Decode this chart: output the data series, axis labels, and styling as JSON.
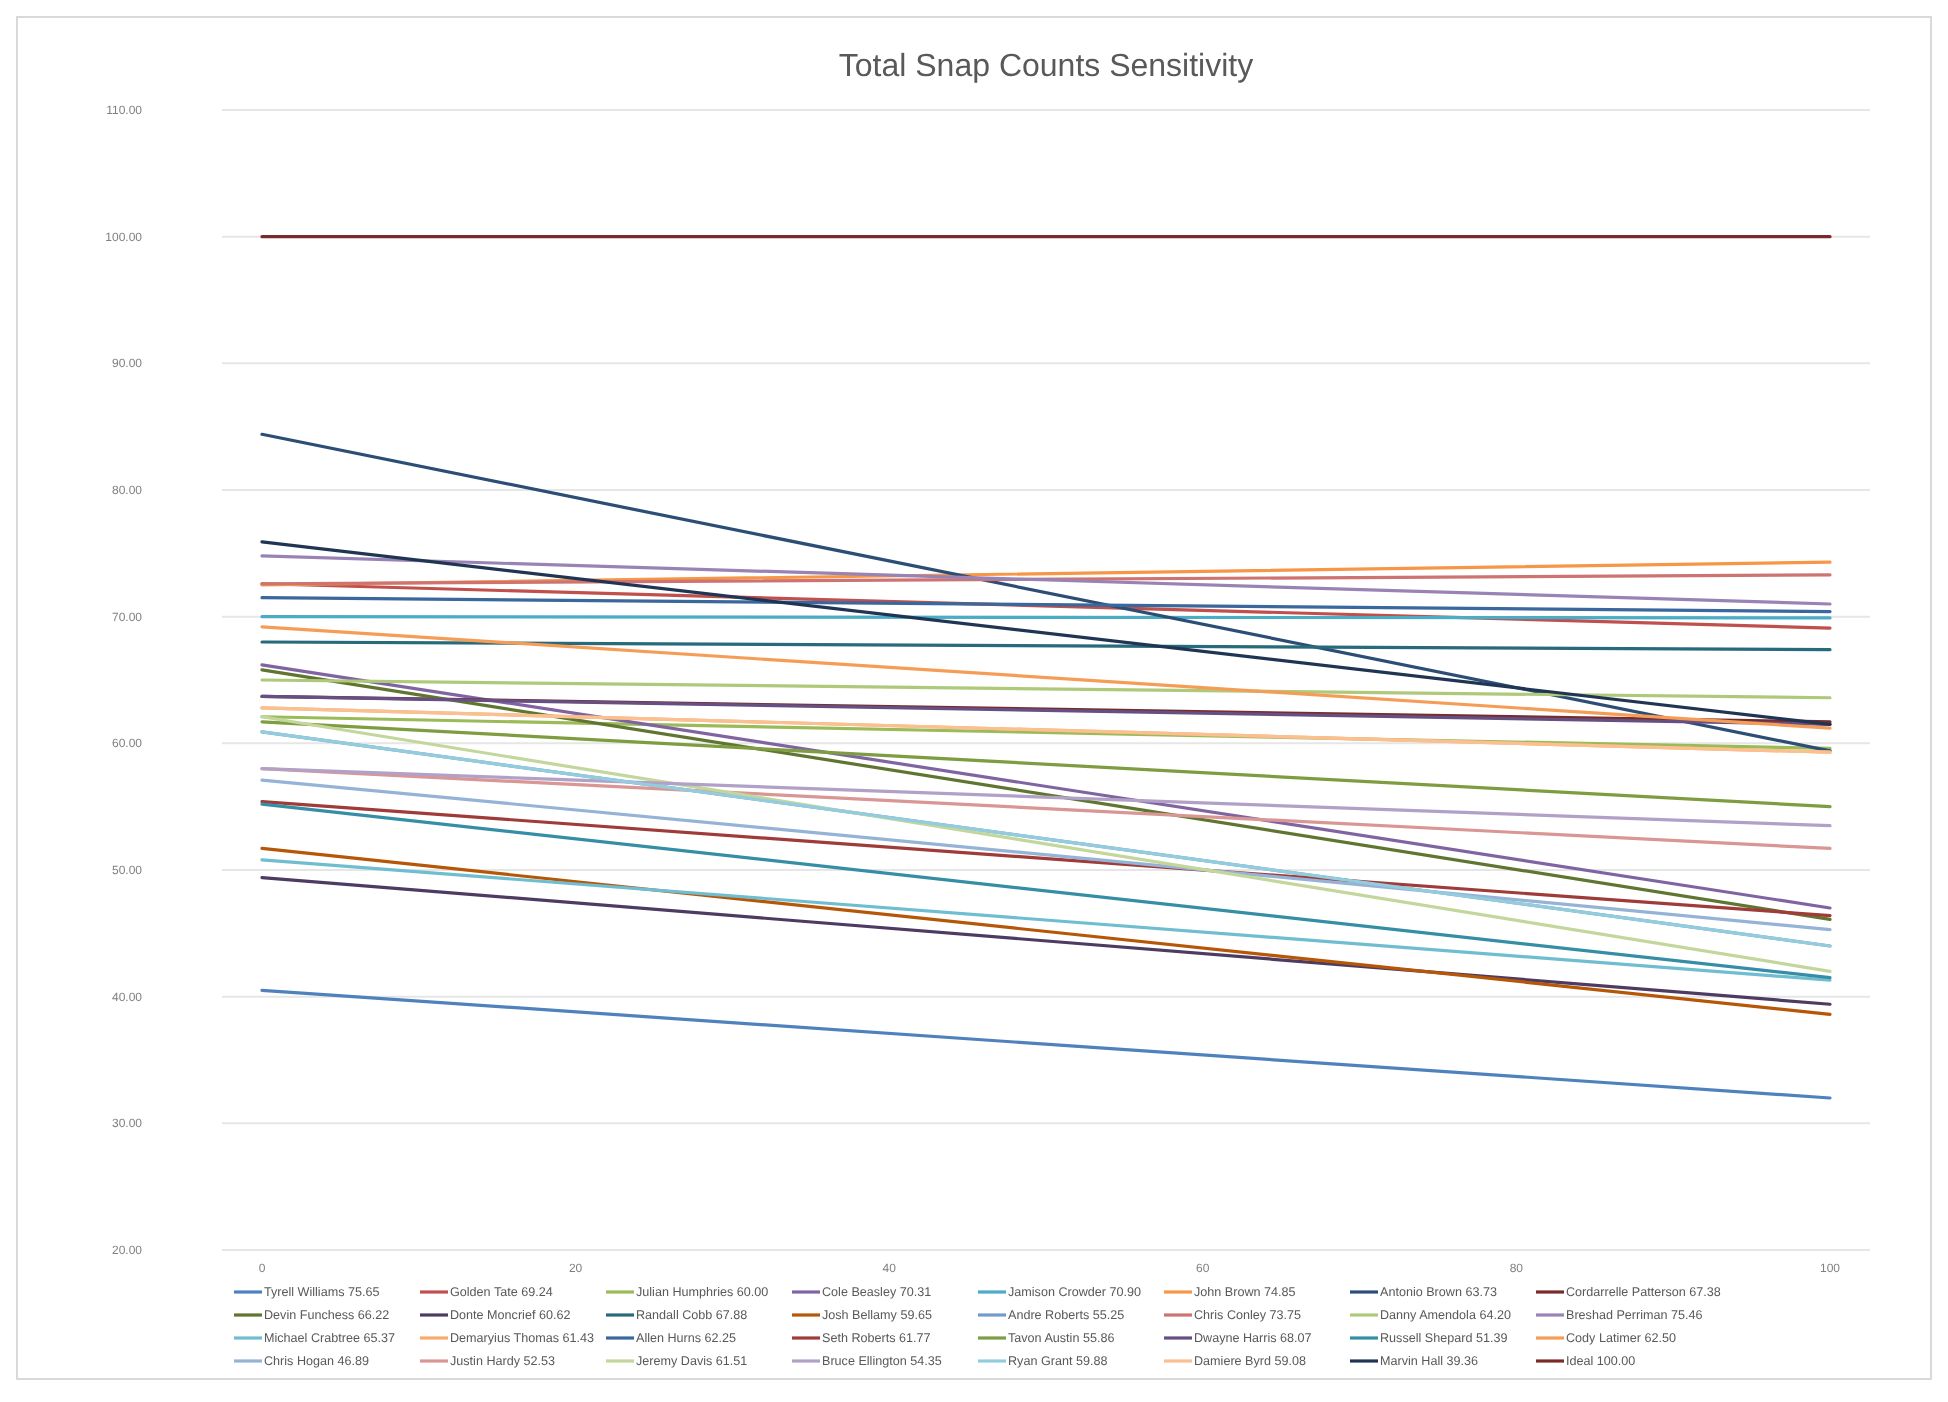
{
  "chart_data": {
    "type": "line",
    "title": "Total Snap Counts Sensitivity",
    "x": [
      0,
      100
    ],
    "xlim": [
      0,
      100
    ],
    "xticks": [
      0,
      20,
      40,
      60,
      80,
      100
    ],
    "ylim": [
      20,
      110
    ],
    "yticks": [
      {
        "value": 20,
        "label": "20.00"
      },
      {
        "value": 30,
        "label": "30.00"
      },
      {
        "value": 40,
        "label": "40.00"
      },
      {
        "value": 50,
        "label": "50.00"
      },
      {
        "value": 60,
        "label": "60.00"
      },
      {
        "value": 70,
        "label": "70.00"
      },
      {
        "value": 80,
        "label": "80.00"
      },
      {
        "value": 90,
        "label": "90.00"
      },
      {
        "value": 100,
        "label": "100.00"
      },
      {
        "value": 110,
        "label": "110.00"
      }
    ],
    "grid": "y",
    "legend": "bottom",
    "marker": "none",
    "line_style": "solid",
    "series": [
      {
        "name": "Tyrell Williams 75.65",
        "color": "#4f81bd",
        "values": [
          40.5,
          32.0
        ]
      },
      {
        "name": "Golden Tate 69.24",
        "color": "#c0504d",
        "values": [
          72.6,
          69.1
        ]
      },
      {
        "name": "Julian Humphries 60.00",
        "color": "#9bbb59",
        "values": [
          62.1,
          59.6
        ]
      },
      {
        "name": "Cole Beasley 70.31",
        "color": "#8064a2",
        "values": [
          66.2,
          47.0
        ]
      },
      {
        "name": "Jamison Crowder 70.90",
        "color": "#4bacc6",
        "values": [
          70.0,
          69.9
        ]
      },
      {
        "name": "John Brown 74.85",
        "color": "#f79646",
        "values": [
          72.5,
          74.3
        ]
      },
      {
        "name": "Antonio Brown 63.73",
        "color": "#2c4d75",
        "values": [
          84.4,
          59.4
        ]
      },
      {
        "name": "Cordarrelle Patterson 67.38",
        "color": "#772c2a",
        "values": [
          63.7,
          61.7
        ]
      },
      {
        "name": "Devin Funchess 66.22",
        "color": "#5f7530",
        "values": [
          65.8,
          46.1
        ]
      },
      {
        "name": "Donte Moncrief 60.62",
        "color": "#4d3b62",
        "values": [
          49.4,
          39.4
        ]
      },
      {
        "name": "Randall Cobb 67.88",
        "color": "#276a7c",
        "values": [
          68.0,
          67.4
        ]
      },
      {
        "name": "Josh Bellamy 59.65",
        "color": "#b65708",
        "values": [
          51.7,
          38.6
        ]
      },
      {
        "name": "Andre Roberts 55.25",
        "color": "#729aca",
        "values": [
          60.9,
          44.0
        ]
      },
      {
        "name": "Chris Conley 73.75",
        "color": "#cd7371",
        "values": [
          72.6,
          73.3
        ]
      },
      {
        "name": "Danny Amendola 64.20",
        "color": "#afc97a",
        "values": [
          65.0,
          63.6
        ]
      },
      {
        "name": "Breshad Perriman 75.46",
        "color": "#9983b5",
        "values": [
          74.8,
          71.0
        ]
      },
      {
        "name": "Michael Crabtree 65.37",
        "color": "#6fbdd1",
        "values": [
          50.8,
          41.3
        ]
      },
      {
        "name": "Demaryius Thomas 61.43",
        "color": "#f9ab6b",
        "values": [
          62.8,
          59.3
        ]
      },
      {
        "name": "Allen Hurns 62.25",
        "color": "#3a679c",
        "values": [
          71.5,
          70.4
        ]
      },
      {
        "name": "Seth Roberts 61.77",
        "color": "#9f3b38",
        "values": [
          55.4,
          46.4
        ]
      },
      {
        "name": "Tavon Austin 55.86",
        "color": "#7e9c40",
        "values": [
          61.7,
          55.0
        ]
      },
      {
        "name": "Dwayne Harris 68.07",
        "color": "#664f83",
        "values": [
          63.7,
          61.5
        ]
      },
      {
        "name": "Russell Shepard 51.39",
        "color": "#358ea6",
        "values": [
          55.2,
          41.5
        ]
      },
      {
        "name": "Cody Latimer 62.50",
        "color": "#f59d56",
        "values": [
          69.2,
          61.2
        ]
      },
      {
        "name": "Chris Hogan 46.89",
        "color": "#95b3d7",
        "values": [
          57.1,
          45.3
        ]
      },
      {
        "name": "Justin Hardy 52.53",
        "color": "#d99694",
        "values": [
          58.0,
          51.7
        ]
      },
      {
        "name": "Jeremy Davis 61.51",
        "color": "#c3d69b",
        "values": [
          62.1,
          42.0
        ]
      },
      {
        "name": "Bruce Ellington 54.35",
        "color": "#b2a1c7",
        "values": [
          58.0,
          53.5
        ]
      },
      {
        "name": "Ryan Grant 59.88",
        "color": "#93cddd",
        "values": [
          60.9,
          44.0
        ]
      },
      {
        "name": "Damiere Byrd 59.08",
        "color": "#fac090",
        "values": [
          62.8,
          59.3
        ]
      },
      {
        "name": "Marvin Hall 39.36",
        "color": "#1f3553",
        "values": [
          75.9,
          61.5
        ]
      },
      {
        "name": "Ideal 100.00",
        "color": "#7a2a28",
        "values": [
          100,
          100
        ]
      }
    ]
  }
}
